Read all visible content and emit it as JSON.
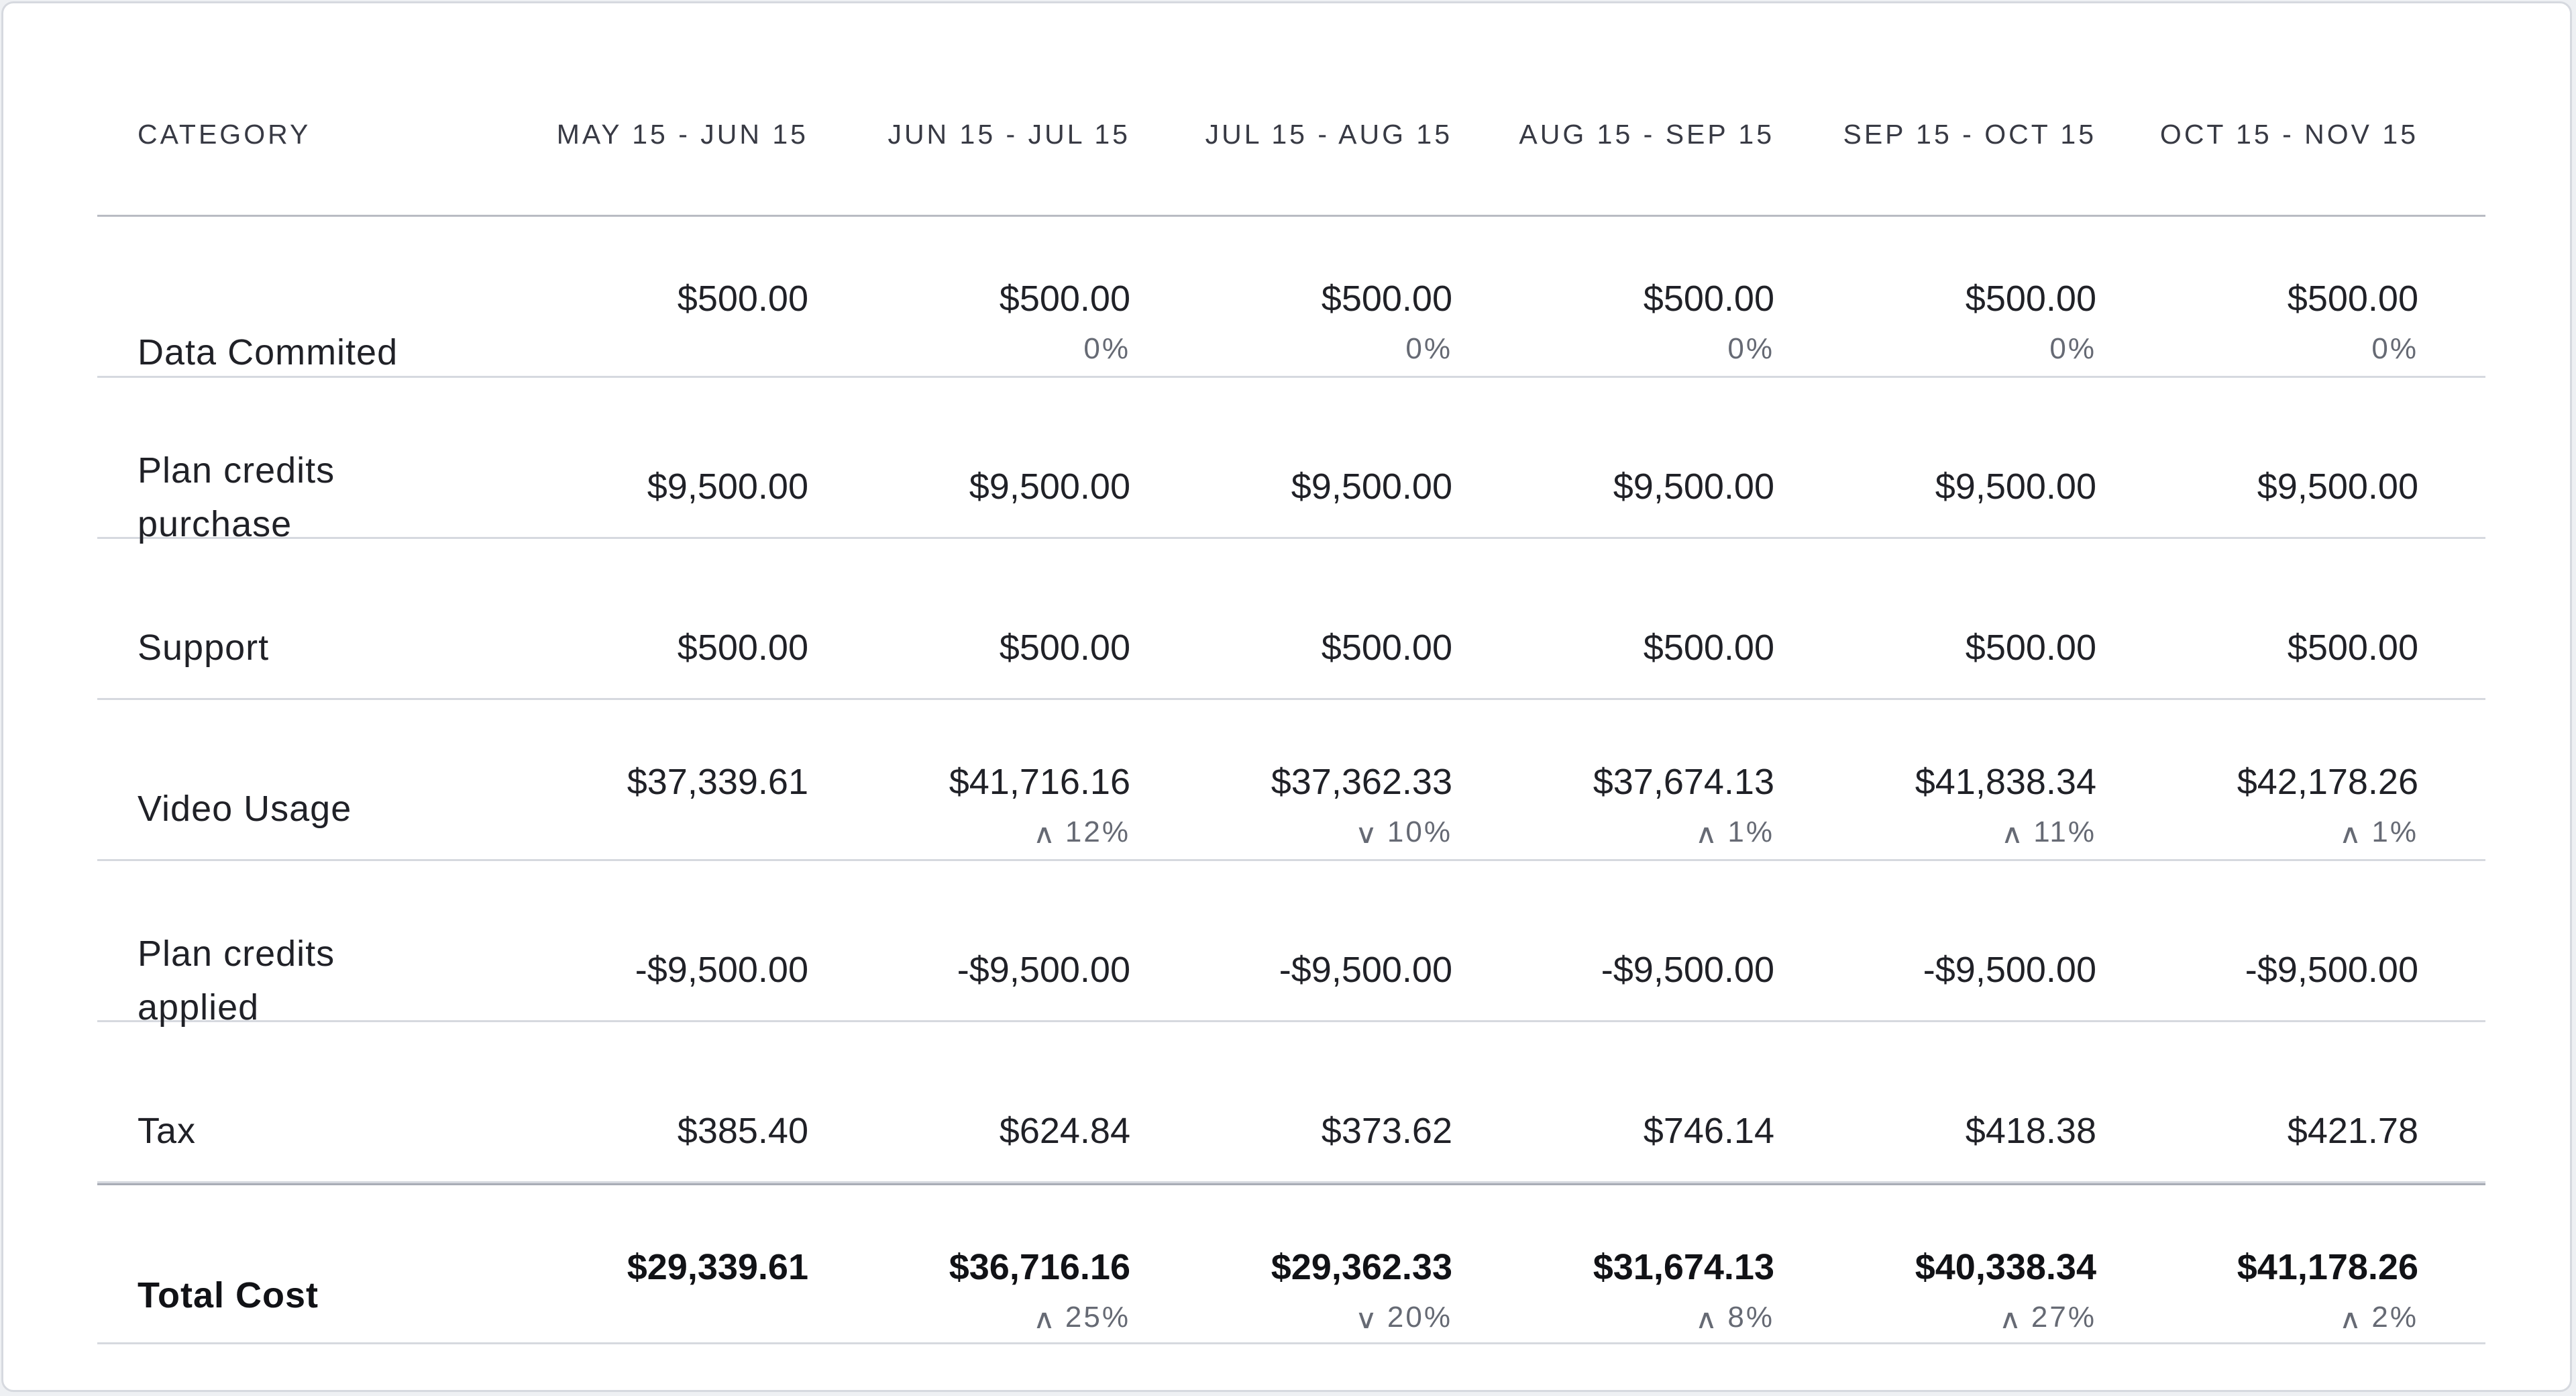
{
  "columns": {
    "category": "CATEGORY",
    "periods": [
      "MAY 15 - JUN 15",
      "JUN 15 - JUL 15",
      "JUL 15 - AUG 15",
      "AUG 15 - SEP 15",
      "SEP 15 - OCT 15",
      "OCT 15 - NOV 15"
    ]
  },
  "rows": [
    {
      "category": "Data Commited",
      "values": [
        "$500.00",
        "$500.00",
        "$500.00",
        "$500.00",
        "$500.00",
        "$500.00"
      ],
      "changes": [
        null,
        {
          "pct": "0%",
          "dir": null
        },
        {
          "pct": "0%",
          "dir": null
        },
        {
          "pct": "0%",
          "dir": null
        },
        {
          "pct": "0%",
          "dir": null
        },
        {
          "pct": "0%",
          "dir": null
        }
      ]
    },
    {
      "category": "Plan credits purchase",
      "values": [
        "$9,500.00",
        "$9,500.00",
        "$9,500.00",
        "$9,500.00",
        "$9,500.00",
        "$9,500.00"
      ]
    },
    {
      "category": "Support",
      "values": [
        "$500.00",
        "$500.00",
        "$500.00",
        "$500.00",
        "$500.00",
        "$500.00"
      ]
    },
    {
      "category": "Video Usage",
      "values": [
        "$37,339.61",
        "$41,716.16",
        "$37,362.33",
        "$37,674.13",
        "$41,838.34",
        "$42,178.26"
      ],
      "changes": [
        null,
        {
          "pct": "12%",
          "dir": "up"
        },
        {
          "pct": "10%",
          "dir": "down"
        },
        {
          "pct": "1%",
          "dir": "up"
        },
        {
          "pct": "11%",
          "dir": "up"
        },
        {
          "pct": "1%",
          "dir": "up"
        }
      ]
    },
    {
      "category": "Plan credits applied",
      "values": [
        "-$9,500.00",
        "-$9,500.00",
        "-$9,500.00",
        "-$9,500.00",
        "-$9,500.00",
        "-$9,500.00"
      ]
    },
    {
      "category": "Tax",
      "values": [
        "$385.40",
        "$624.84",
        "$373.62",
        "$746.14",
        "$418.38",
        "$421.78"
      ]
    }
  ],
  "total": {
    "category": "Total Cost",
    "values": [
      "$29,339.61",
      "$36,716.16",
      "$29,362.33",
      "$31,674.13",
      "$40,338.34",
      "$41,178.26"
    ],
    "changes": [
      null,
      {
        "pct": "25%",
        "dir": "up"
      },
      {
        "pct": "20%",
        "dir": "down"
      },
      {
        "pct": "8%",
        "dir": "up"
      },
      {
        "pct": "27%",
        "dir": "up"
      },
      {
        "pct": "2%",
        "dir": "up"
      }
    ]
  },
  "icons": {
    "up": "chevron-up-icon",
    "down": "chevron-down-icon"
  },
  "colors": {
    "text": "#202127",
    "muted": "#666a74",
    "divider": "#d6d9df"
  }
}
